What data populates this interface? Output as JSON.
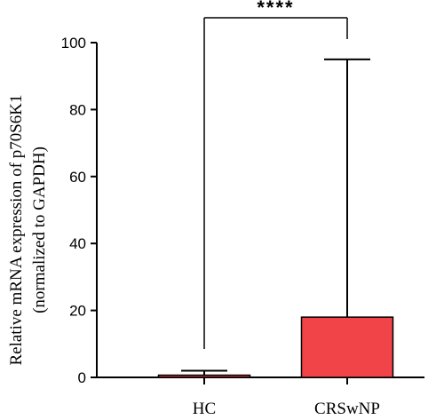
{
  "chart_data": {
    "type": "bar",
    "title": "",
    "categories": [
      "HC",
      "CRSwNP"
    ],
    "series": [
      {
        "values": [
          0.5,
          18
        ],
        "error_upper": [
          2,
          95
        ],
        "colors": [
          "#e03c3c",
          "#f04448"
        ]
      }
    ],
    "ylabel_line1": "Relative mRNA expression of p70S6K1",
    "ylabel_line2": "(normalized to GAPDH)",
    "ylim": [
      0,
      100
    ],
    "yticks": [
      0,
      20,
      40,
      60,
      80,
      100
    ],
    "significance": "****",
    "grid": false
  }
}
